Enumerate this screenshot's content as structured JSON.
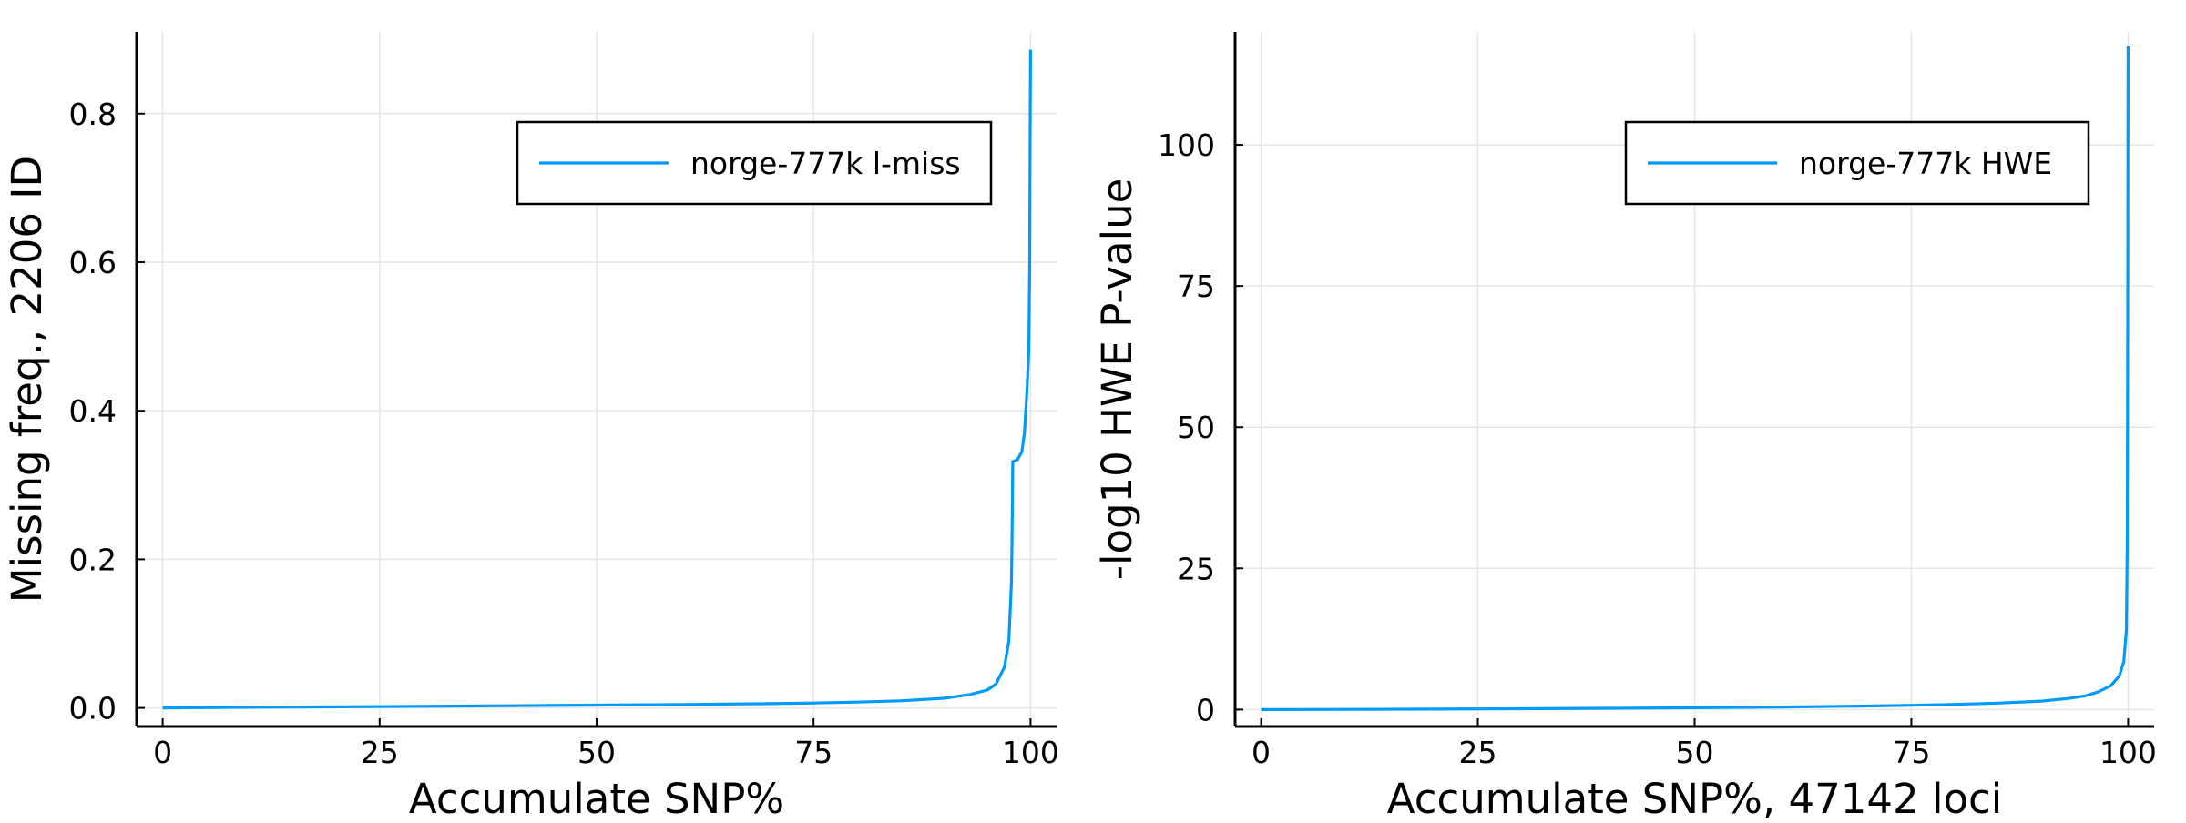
{
  "chart_data": [
    {
      "type": "line",
      "xlabel": "Accumulate SNP%",
      "ylabel": "Missing freq., 2206 ID",
      "xlim": [
        -3,
        103
      ],
      "ylim": [
        -0.025,
        0.91
      ],
      "xticks": [
        0,
        25,
        50,
        75,
        100
      ],
      "xtick_labels": [
        "0",
        "25",
        "50",
        "75",
        "100"
      ],
      "yticks": [
        0.0,
        0.2,
        0.4,
        0.6,
        0.8
      ],
      "ytick_labels": [
        "0.0",
        "0.2",
        "0.4",
        "0.6",
        "0.8"
      ],
      "grid": true,
      "legend_position": "top-right",
      "series_color": "#009AFA",
      "series": [
        {
          "name": "norge-777k l-miss",
          "x": [
            0,
            10,
            20,
            30,
            40,
            50,
            60,
            70,
            75,
            80,
            85,
            90,
            93,
            95,
            96,
            97,
            97.5,
            97.8,
            97.9,
            97.95,
            98.0,
            98.5,
            99.0,
            99.3,
            99.6,
            99.8,
            99.9,
            99.95,
            100
          ],
          "y": [
            0.0,
            0.0008,
            0.0015,
            0.0022,
            0.003,
            0.0038,
            0.0047,
            0.0058,
            0.0066,
            0.0078,
            0.0095,
            0.013,
            0.018,
            0.024,
            0.032,
            0.055,
            0.09,
            0.17,
            0.26,
            0.332,
            0.332,
            0.334,
            0.345,
            0.37,
            0.43,
            0.48,
            0.6,
            0.75,
            0.886
          ]
        }
      ]
    },
    {
      "type": "line",
      "xlabel": "Accumulate SNP%, 47142 loci",
      "ylabel": "-log10 HWE P-value",
      "xlim": [
        -3,
        103
      ],
      "ylim": [
        -3,
        120
      ],
      "xticks": [
        0,
        25,
        50,
        75,
        100
      ],
      "xtick_labels": [
        "0",
        "25",
        "50",
        "75",
        "100"
      ],
      "yticks": [
        0,
        25,
        50,
        75,
        100
      ],
      "ytick_labels": [
        "0",
        "25",
        "50",
        "75",
        "100"
      ],
      "grid": true,
      "legend_position": "top-right",
      "series_color": "#009AFA",
      "series": [
        {
          "name": "norge-777k HWE",
          "x": [
            0,
            10,
            20,
            30,
            40,
            50,
            60,
            70,
            75,
            80,
            85,
            90,
            93,
            95,
            96.5,
            98,
            99,
            99.5,
            99.8,
            99.9,
            99.95,
            100
          ],
          "y": [
            0.0,
            0.03,
            0.08,
            0.14,
            0.22,
            0.32,
            0.45,
            0.62,
            0.75,
            0.92,
            1.15,
            1.5,
            1.95,
            2.4,
            3.1,
            4.2,
            6.0,
            8.5,
            14.0,
            30.0,
            70.0,
            117.5
          ]
        }
      ]
    }
  ]
}
